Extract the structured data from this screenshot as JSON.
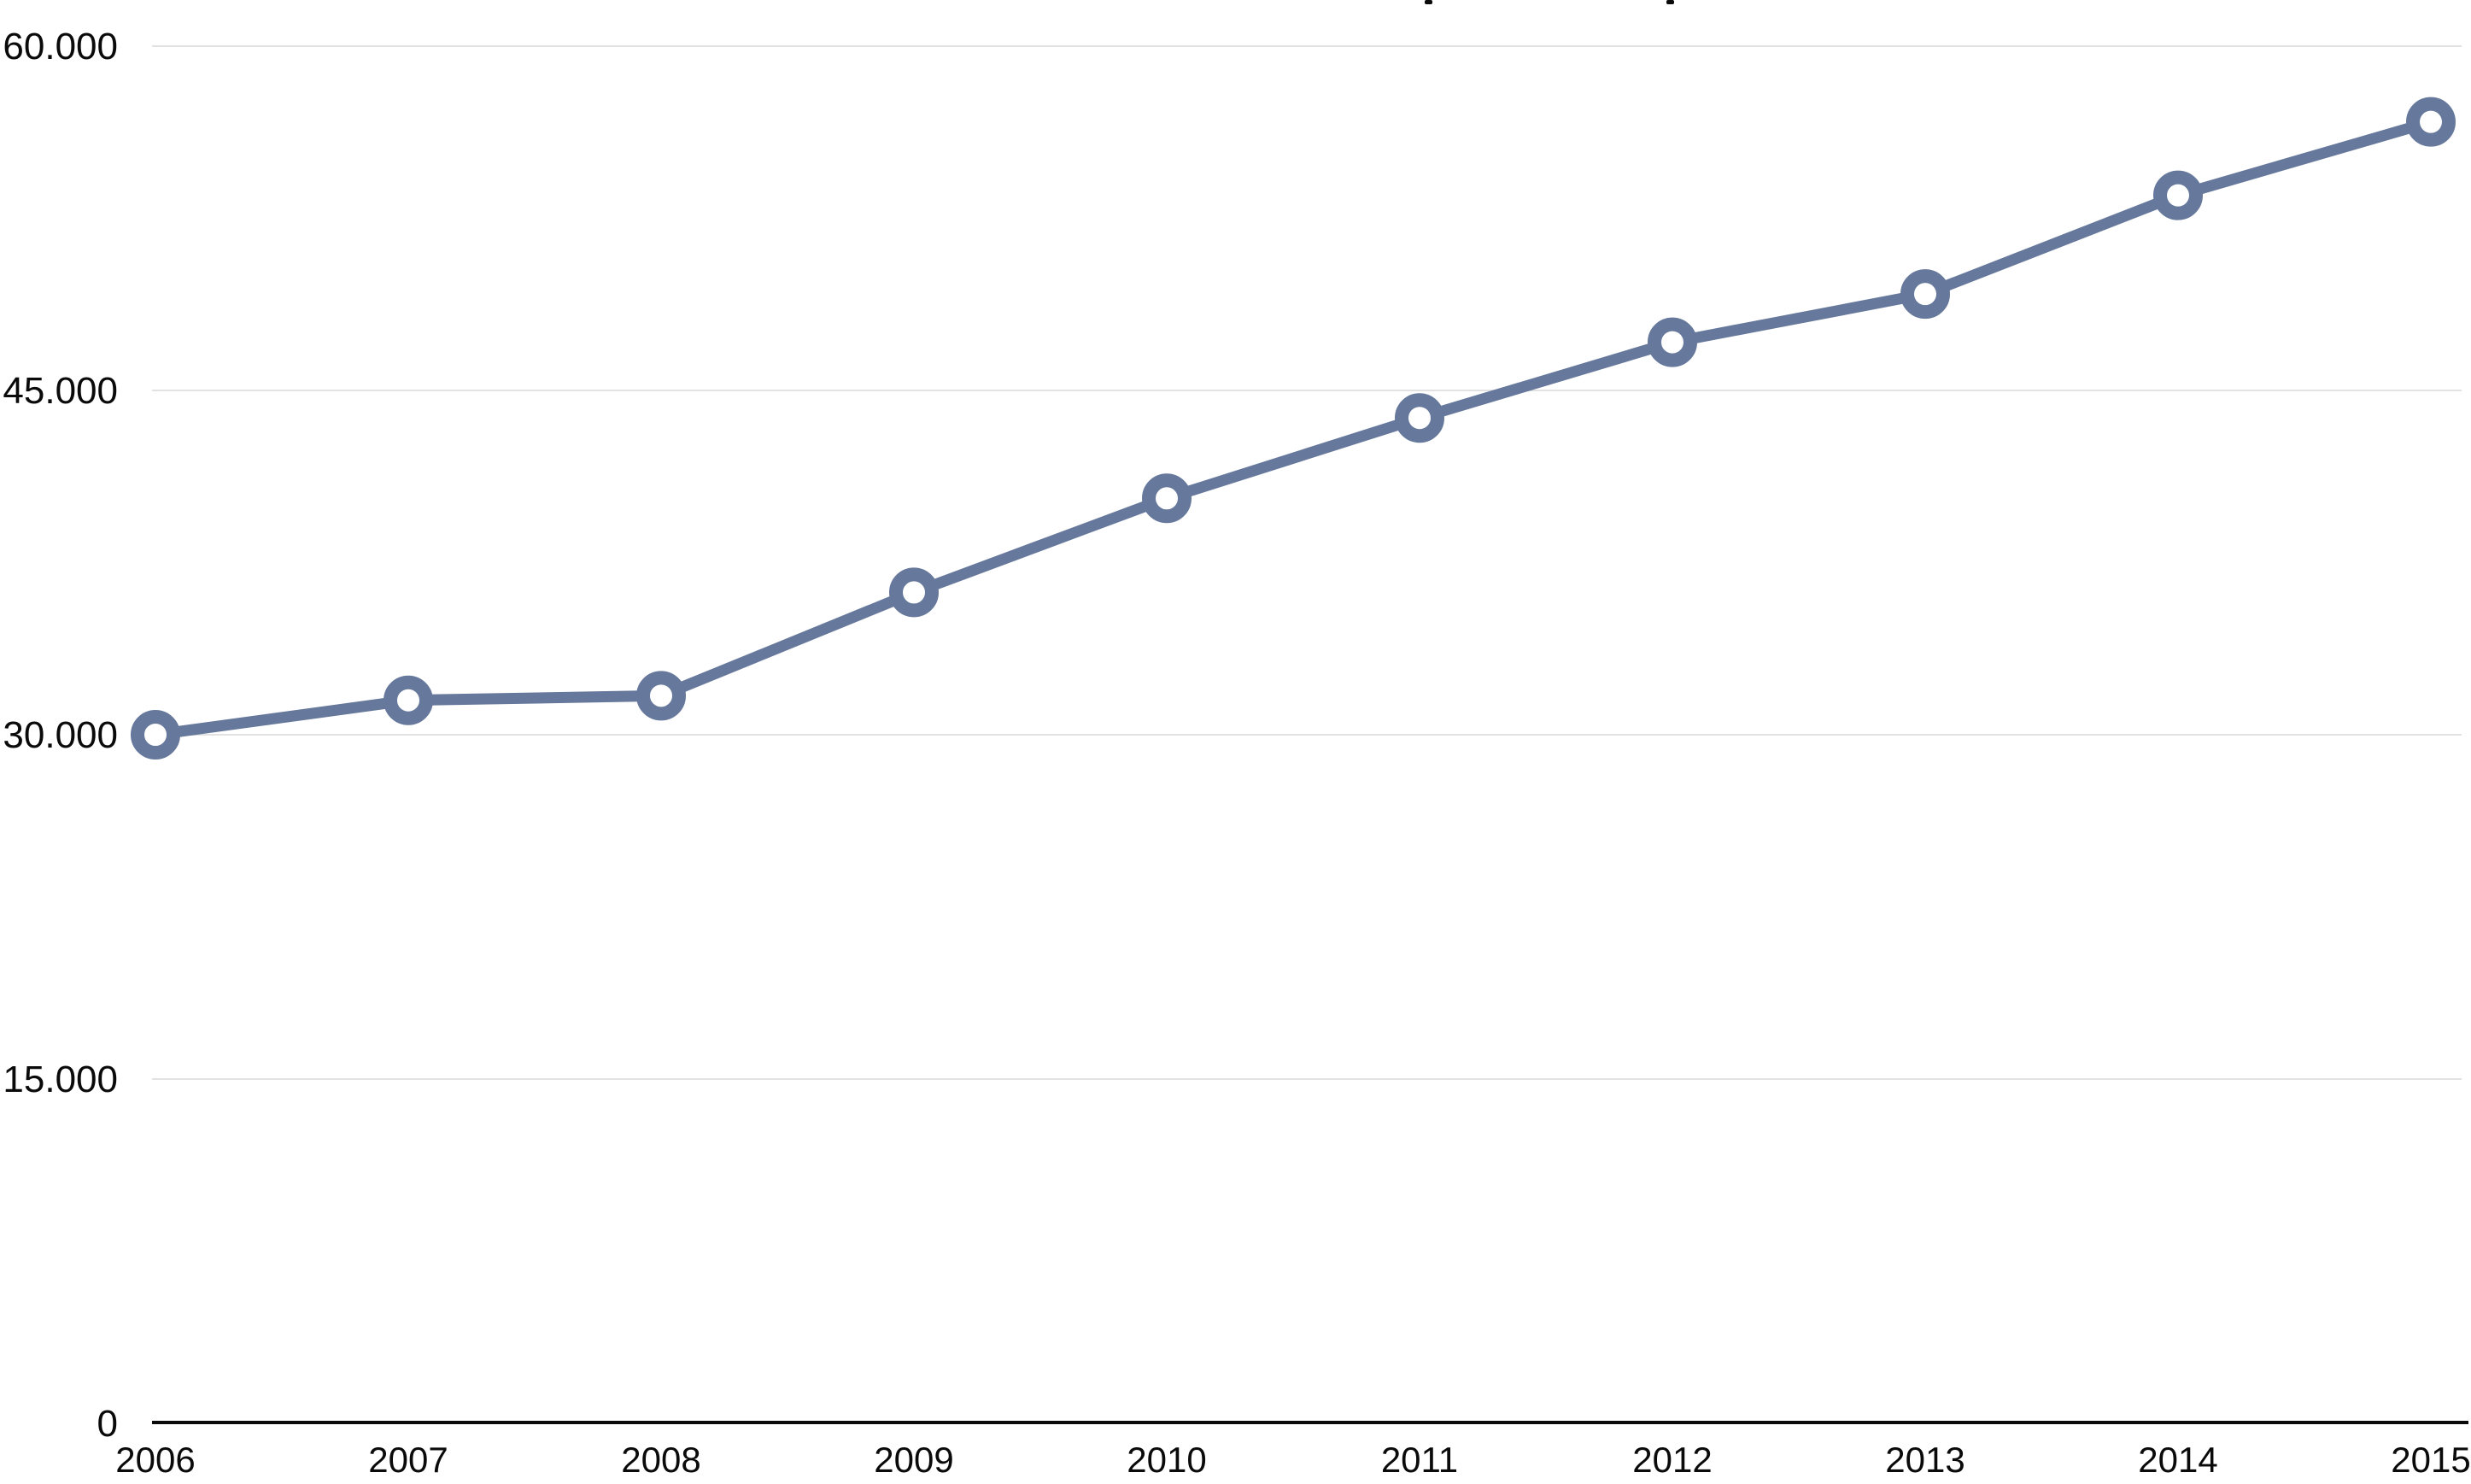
{
  "page": {
    "background_color": "#ffffff"
  },
  "chart_data": {
    "type": "line",
    "title": "",
    "title_cropped_out_of_frame": true,
    "cropped_title_fragment_x": [
      1672,
      1955
    ],
    "categories": [
      "2006",
      "2007",
      "2008",
      "2009",
      "2010",
      "2011",
      "2012",
      "2013",
      "2014",
      "2015"
    ],
    "series": [
      {
        "name": "",
        "values": [
          30000,
          31500,
          31700,
          36200,
          40300,
          43800,
          47100,
          49200,
          53500,
          56700
        ]
      }
    ],
    "xlabel": "",
    "ylabel": "",
    "ylim": [
      0,
      60000
    ],
    "yticks": [
      0,
      15000,
      30000,
      45000,
      60000
    ],
    "ytick_labels": [
      "0",
      "15.000",
      "30.000",
      "45.000",
      "60.000"
    ],
    "number_format": "German thousands separator (dot)",
    "grid": "horizontal",
    "legend": "none",
    "marker": "open-circle",
    "styles": {
      "line_color": "#66789b",
      "marker_fill": "#ffffff",
      "gridline_color": "#e2e2e2",
      "axis_color": "#0a0a0a",
      "label_color": "#0a0a0a",
      "background": "#ffffff"
    }
  }
}
